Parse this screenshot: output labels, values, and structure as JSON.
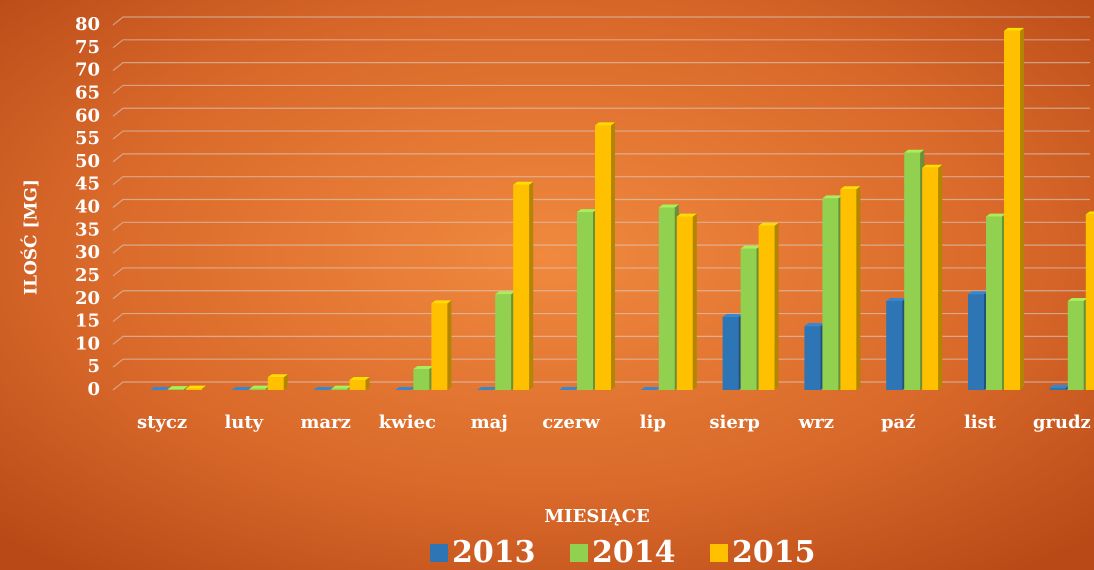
{
  "chart_data": {
    "type": "bar",
    "y_label": "ILOŚĆ [MG]",
    "x_label": "MIESIĄCE",
    "categories": [
      "stycz",
      "luty",
      "marz",
      "kwiec",
      "maj",
      "czerw",
      "lip",
      "sierp",
      "wrz",
      "paź",
      "list",
      "grudz"
    ],
    "series": [
      {
        "name": "2013",
        "color": "#2e75b6",
        "values": [
          0,
          0,
          0,
          0,
          0,
          0,
          0,
          16,
          14,
          19.5,
          21,
          0.5
        ]
      },
      {
        "name": "2014",
        "color": "#92d050",
        "values": [
          0.2,
          0.3,
          0.3,
          4.6,
          21,
          39,
          40,
          31,
          42,
          52,
          38,
          19.5
        ]
      },
      {
        "name": "2015",
        "color": "#ffc000",
        "values": [
          0.3,
          2.8,
          2.2,
          19,
          45,
          58,
          38,
          36,
          44,
          48.7,
          78.7,
          38.5
        ]
      }
    ],
    "ylim": [
      0,
      80
    ],
    "yticks": [
      0,
      5,
      10,
      15,
      20,
      25,
      30,
      35,
      40,
      45,
      50,
      55,
      60,
      65,
      70,
      75,
      80
    ],
    "grid": true
  }
}
